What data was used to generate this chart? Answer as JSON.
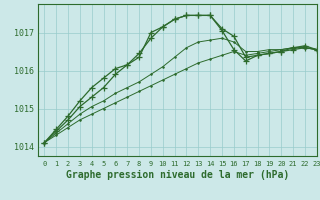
{
  "background_color": "#cce8e8",
  "grid_color": "#99cccc",
  "line_color": "#2d6b2d",
  "xlabel": "Graphe pression niveau de la mer (hPa)",
  "xlabel_fontsize": 7,
  "xlim": [
    -0.5,
    23
  ],
  "ylim": [
    1013.75,
    1017.75
  ],
  "yticks": [
    1014,
    1015,
    1016,
    1017
  ],
  "xticks": [
    0,
    1,
    2,
    3,
    4,
    5,
    6,
    7,
    8,
    9,
    10,
    11,
    12,
    13,
    14,
    15,
    16,
    17,
    18,
    19,
    20,
    21,
    22,
    23
  ],
  "line1_x": [
    0,
    1,
    2,
    3,
    4,
    5,
    6,
    7,
    8,
    9,
    10,
    11,
    12,
    13,
    14,
    15,
    16,
    17,
    18,
    19,
    20,
    21,
    22,
    23
  ],
  "line1_y": [
    1014.1,
    1014.3,
    1014.5,
    1014.7,
    1014.85,
    1015.0,
    1015.15,
    1015.3,
    1015.45,
    1015.6,
    1015.75,
    1015.9,
    1016.05,
    1016.2,
    1016.3,
    1016.4,
    1016.5,
    1016.4,
    1016.45,
    1016.5,
    1016.55,
    1016.6,
    1016.6,
    1016.55
  ],
  "line2_x": [
    0,
    1,
    2,
    3,
    4,
    5,
    6,
    7,
    8,
    9,
    10,
    11,
    12,
    13,
    14,
    15,
    16,
    17,
    18,
    19,
    20,
    21,
    22,
    23
  ],
  "line2_y": [
    1014.1,
    1014.35,
    1014.6,
    1014.85,
    1015.05,
    1015.2,
    1015.4,
    1015.55,
    1015.7,
    1015.9,
    1016.1,
    1016.35,
    1016.6,
    1016.75,
    1016.8,
    1016.85,
    1016.75,
    1016.5,
    1016.5,
    1016.55,
    1016.55,
    1016.6,
    1016.6,
    1016.55
  ],
  "line3_x": [
    0,
    1,
    2,
    3,
    4,
    5,
    6,
    7,
    8,
    9,
    10,
    11,
    12,
    13,
    14,
    15,
    16,
    17,
    18,
    19,
    20,
    21,
    22,
    23
  ],
  "line3_y": [
    1014.1,
    1014.4,
    1014.7,
    1015.05,
    1015.3,
    1015.55,
    1015.9,
    1016.15,
    1016.45,
    1016.85,
    1017.15,
    1017.35,
    1017.45,
    1017.45,
    1017.45,
    1017.1,
    1016.9,
    1016.35,
    1016.4,
    1016.45,
    1016.5,
    1016.55,
    1016.6,
    1016.55
  ],
  "line4_x": [
    0,
    1,
    2,
    3,
    4,
    5,
    6,
    7,
    8,
    9,
    10,
    11,
    12,
    13,
    14,
    15,
    16,
    17,
    18,
    19,
    20,
    21,
    22,
    23
  ],
  "line4_y": [
    1014.1,
    1014.45,
    1014.8,
    1015.2,
    1015.55,
    1015.8,
    1016.05,
    1016.15,
    1016.35,
    1017.0,
    1017.15,
    1017.35,
    1017.45,
    1017.45,
    1017.45,
    1017.05,
    1016.55,
    1016.25,
    1016.4,
    1016.45,
    1016.5,
    1016.6,
    1016.65,
    1016.55
  ]
}
